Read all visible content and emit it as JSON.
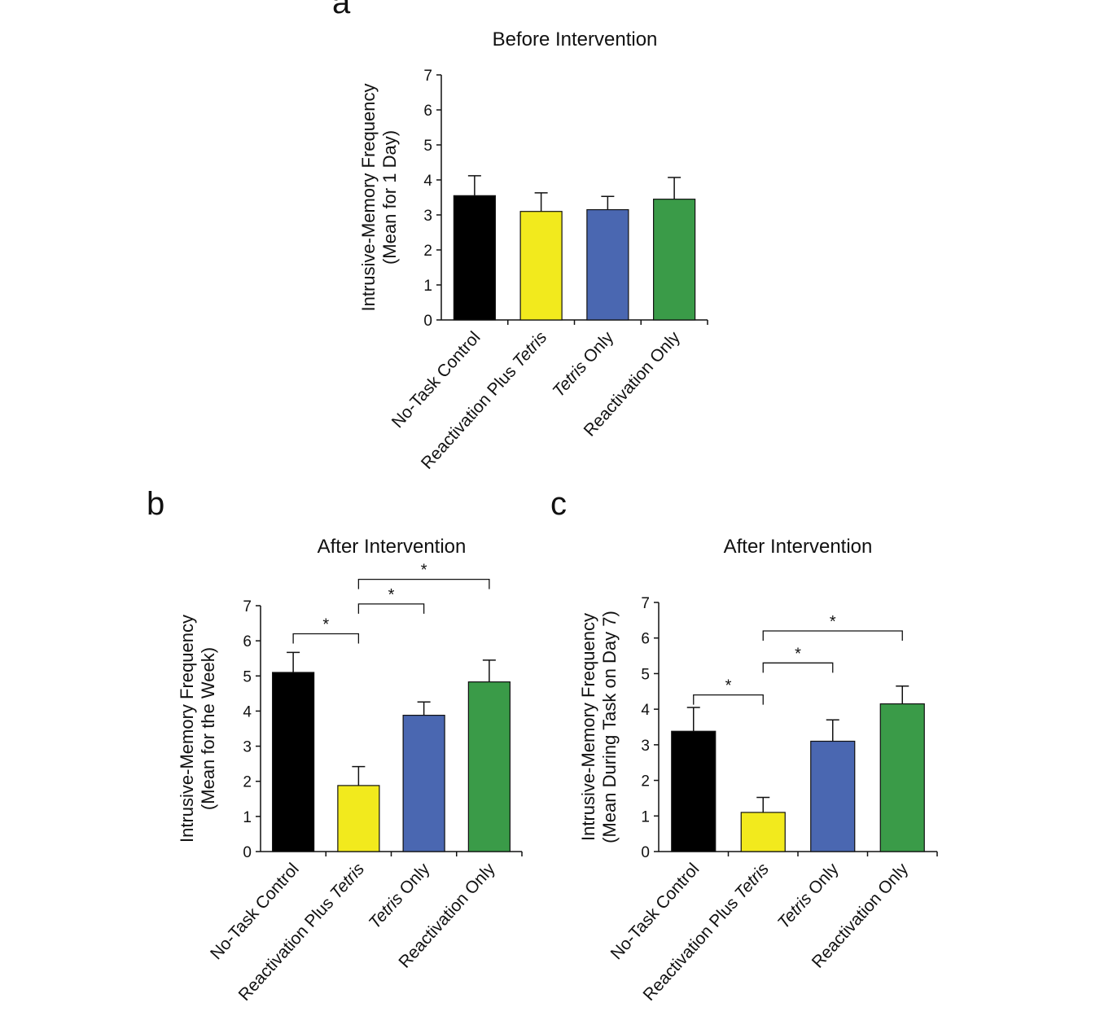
{
  "chart_data": [
    {
      "panel": "a",
      "type": "bar",
      "title": "Before Intervention",
      "ylabel_lines": [
        "Intrusive-Memory Frequency",
        "(Mean for 1 Day)"
      ],
      "categories": [
        {
          "parts": [
            {
              "text": "No-Task Control",
              "italic": false
            }
          ]
        },
        {
          "parts": [
            {
              "text": "Reactivation Plus ",
              "italic": false
            },
            {
              "text": "Tetris",
              "italic": true
            }
          ]
        },
        {
          "parts": [
            {
              "text": "Tetris",
              "italic": true
            },
            {
              "text": " Only",
              "italic": false
            }
          ]
        },
        {
          "parts": [
            {
              "text": "Reactivation Only",
              "italic": false
            }
          ]
        }
      ],
      "values": [
        3.55,
        3.1,
        3.15,
        3.45
      ],
      "errors": [
        0.57,
        0.53,
        0.38,
        0.62
      ],
      "colors": [
        "#000000",
        "#f2ea1d",
        "#4a67b1",
        "#3a9b48"
      ],
      "ylim": [
        0,
        7
      ],
      "yticks": [
        "0",
        "1",
        "2",
        "3",
        "4",
        "5",
        "6",
        "7"
      ],
      "comparisons": []
    },
    {
      "panel": "b",
      "type": "bar",
      "title": "After Intervention",
      "ylabel_lines": [
        "Intrusive-Memory Frequency",
        "(Mean for the Week)"
      ],
      "categories": [
        {
          "parts": [
            {
              "text": "No-Task Control",
              "italic": false
            }
          ]
        },
        {
          "parts": [
            {
              "text": "Reactivation Plus ",
              "italic": false
            },
            {
              "text": "Tetris",
              "italic": true
            }
          ]
        },
        {
          "parts": [
            {
              "text": "Tetris",
              "italic": true
            },
            {
              "text": " Only",
              "italic": false
            }
          ]
        },
        {
          "parts": [
            {
              "text": "Reactivation Only",
              "italic": false
            }
          ]
        }
      ],
      "values": [
        5.1,
        1.88,
        3.88,
        4.83
      ],
      "errors": [
        0.57,
        0.54,
        0.38,
        0.62
      ],
      "colors": [
        "#000000",
        "#f2ea1d",
        "#4a67b1",
        "#3a9b48"
      ],
      "ylim": [
        0,
        7
      ],
      "yticks": [
        "0",
        "1",
        "2",
        "3",
        "4",
        "5",
        "6",
        "7"
      ],
      "comparisons": [
        {
          "from": 0,
          "to": 1,
          "level": 6.2,
          "label": "*"
        },
        {
          "from": 1,
          "to": 2,
          "level": 7.05,
          "label": "*"
        },
        {
          "from": 1,
          "to": 3,
          "level": 7.75,
          "label": "*"
        }
      ]
    },
    {
      "panel": "c",
      "type": "bar",
      "title": "After Intervention",
      "ylabel_lines": [
        "Intrusive-Memory  Frequency",
        "(Mean During Task on Day 7)"
      ],
      "categories": [
        {
          "parts": [
            {
              "text": "No-Task Control",
              "italic": false
            }
          ]
        },
        {
          "parts": [
            {
              "text": "Reactivation Plus ",
              "italic": false
            },
            {
              "text": "Tetris",
              "italic": true
            }
          ]
        },
        {
          "parts": [
            {
              "text": "Tetris",
              "italic": true
            },
            {
              "text": " Only",
              "italic": false
            }
          ]
        },
        {
          "parts": [
            {
              "text": "Reactivation Only",
              "italic": false
            }
          ]
        }
      ],
      "values": [
        3.38,
        1.1,
        3.1,
        4.15
      ],
      "errors": [
        0.67,
        0.42,
        0.6,
        0.5
      ],
      "colors": [
        "#000000",
        "#f2ea1d",
        "#4a67b1",
        "#3a9b48"
      ],
      "ylim": [
        0,
        7
      ],
      "yticks": [
        "0",
        "1",
        "2",
        "3",
        "4",
        "5",
        "6",
        "7"
      ],
      "comparisons": [
        {
          "from": 0,
          "to": 1,
          "level": 4.4,
          "label": "*"
        },
        {
          "from": 1,
          "to": 2,
          "level": 5.3,
          "label": "*"
        },
        {
          "from": 1,
          "to": 3,
          "level": 6.2,
          "label": "*"
        }
      ]
    }
  ]
}
